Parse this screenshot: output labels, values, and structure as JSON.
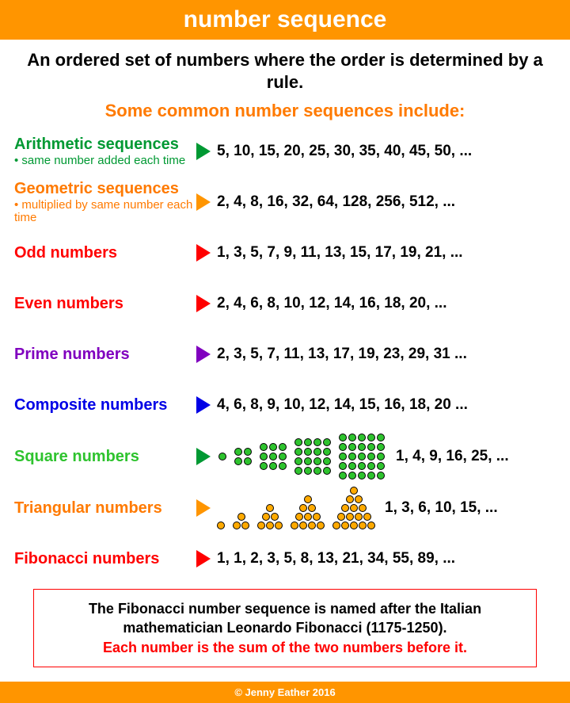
{
  "header": {
    "title": "number sequence"
  },
  "definition": "An ordered set of numbers where the order is determined by a rule.",
  "subtitle": "Some common number sequences include:",
  "rows": [
    {
      "label": "Arithmetic sequences",
      "note": "• same number added each time",
      "seq": "5, 10, 15, 20, 25, 30, 35, 40, 45, 50, ..."
    },
    {
      "label": "Geometric sequences",
      "note": "• multiplied by same number each time",
      "seq": "2, 4, 8, 16, 32, 64, 128, 256, 512, ..."
    },
    {
      "label": "Odd numbers",
      "seq": "1, 3, 5, 7, 9, 11, 13, 15, 17, 19, 21, ..."
    },
    {
      "label": "Even numbers",
      "seq": "2, 4, 6, 8, 10, 12, 14, 16, 18, 20, ..."
    },
    {
      "label": "Prime numbers",
      "seq": "2, 3, 5, 7, 11, 13, 17, 19, 23, 29, 31 ..."
    },
    {
      "label": "Composite numbers",
      "seq": "4, 6, 8, 9, 10, 12, 14, 15, 16, 18, 20 ..."
    },
    {
      "label": "Square numbers",
      "seq": "1, 4, 9, 16, 25, ...",
      "visual": "squares",
      "sizes": [
        1,
        2,
        3,
        4,
        5
      ]
    },
    {
      "label": "Triangular numbers",
      "seq": "1, 3, 6, 10, 15, ...",
      "visual": "triangles",
      "sizes": [
        1,
        2,
        3,
        4,
        5
      ]
    },
    {
      "label": "Fibonacci numbers",
      "seq": "1, 1, 2, 3, 5, 8, 13, 21, 34, 55, 89, ..."
    }
  ],
  "colors": {
    "arithmetic_label": "#009933",
    "arithmetic_tri": "#009933",
    "geometric_label": "#ff7a00",
    "geometric_tri": "#ff9500",
    "odd_label": "#ff0000",
    "odd_tri": "#ff0000",
    "even_label": "#ff0000",
    "even_tri": "#ff0000",
    "prime_label": "#8000bf",
    "prime_tri": "#8000bf",
    "composite_label": "#0000e6",
    "composite_tri": "#0000e6",
    "square_label": "#2ec32e",
    "square_tri": "#009933",
    "square_dot": "#2ec32e",
    "triangular_label": "#ff7a00",
    "triangular_tri": "#ff9500",
    "triangular_dot": "#ffaa00",
    "fibonacci_label": "#ff0000",
    "fibonacci_tri": "#ff0000",
    "title_bg": "#ff9500",
    "title_fg": "#ffffff",
    "subtitle_fg": "#ff7a00",
    "fbox_border": "#ff0000",
    "fbox_line2": "#ff0000"
  },
  "fibonacci_box": {
    "line1": "The Fibonacci number sequence is named after the Italian mathematician Leonardo Fibonacci (1175-1250).",
    "line2": "Each number is the sum of the two numbers before it."
  },
  "footer": "© Jenny Eather 2016"
}
